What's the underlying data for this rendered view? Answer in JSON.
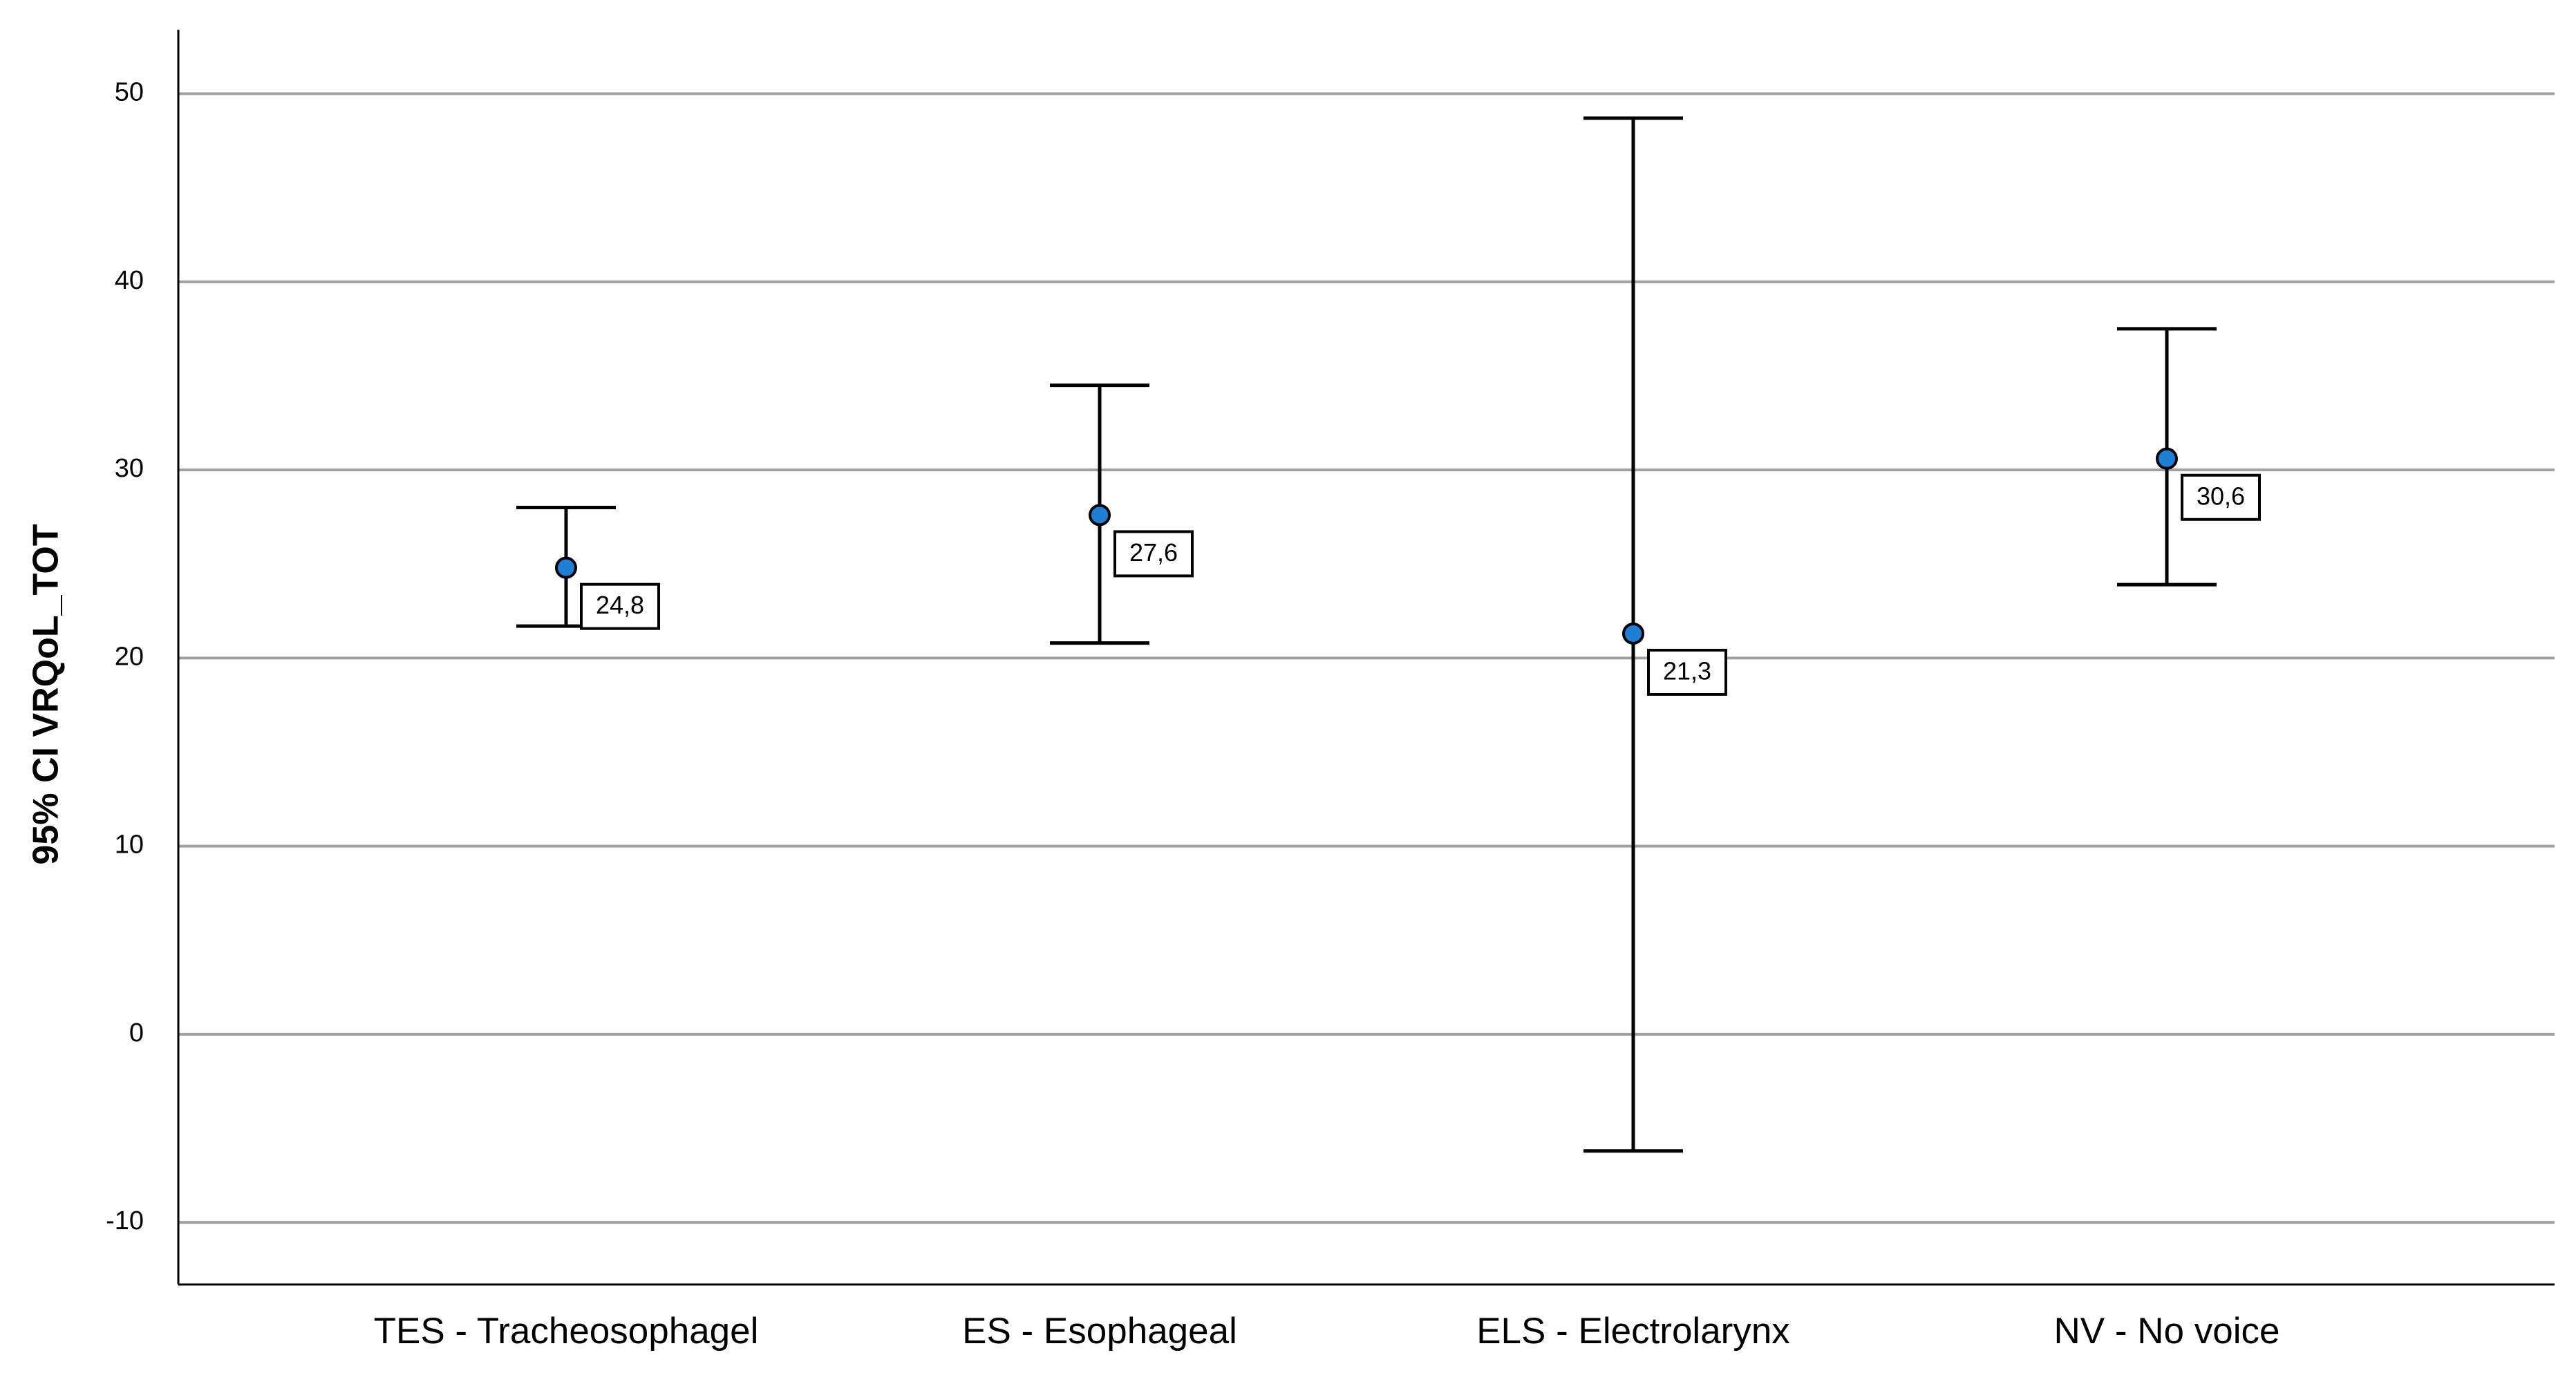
{
  "chart_data": {
    "type": "errorbar",
    "y_label": "95% CI VRQoL_TOT",
    "categories": [
      "TES - Tracheosophagel",
      "ES - Esophageal",
      "ELS - Electrolarynx",
      "NV - No voice"
    ],
    "values": [
      24.8,
      27.6,
      21.3,
      30.6
    ],
    "value_labels": [
      "24,8",
      "27,6",
      "21,3",
      "30,6"
    ],
    "lower": [
      21.7,
      20.8,
      -6.2,
      23.9
    ],
    "upper": [
      28.0,
      34.5,
      48.7,
      37.5
    ],
    "color": "#1f7fd6",
    "ylim": [
      -13.3,
      53.4
    ],
    "yticks": [
      -10,
      0,
      10,
      20,
      30,
      40,
      50
    ],
    "grid": true
  }
}
